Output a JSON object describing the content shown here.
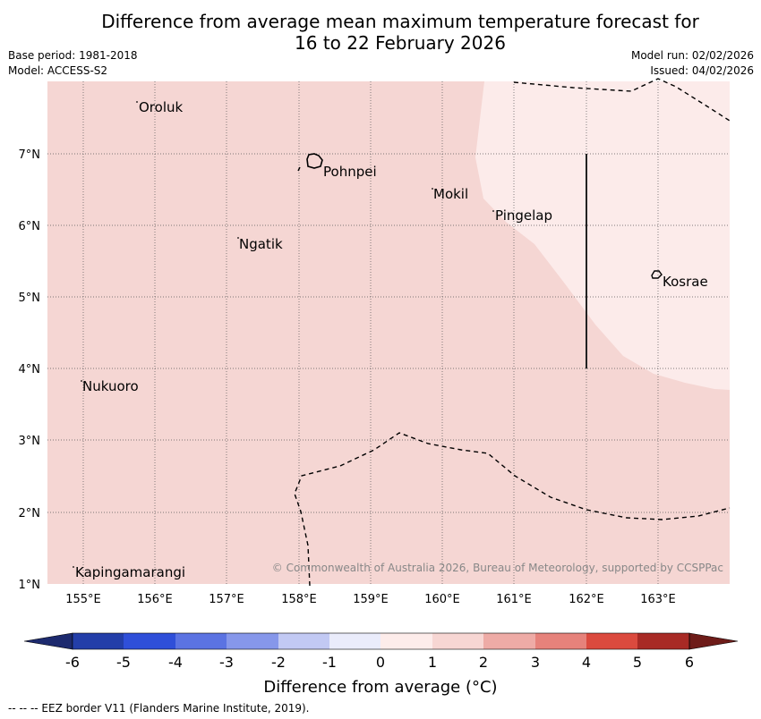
{
  "title": {
    "line1": "Difference from average mean maximum temperature forecast for",
    "line2": "16 to 22 February 2026"
  },
  "meta_left": {
    "base_period": "Base period: 1981-2018",
    "model": "Model: ACCESS-S2"
  },
  "meta_right": {
    "model_run": "Model run: 02/02/2026",
    "issued": "Issued: 04/02/2026"
  },
  "map": {
    "lon_labels": [
      "155°E",
      "156°E",
      "157°E",
      "158°E",
      "159°E",
      "160°E",
      "161°E",
      "162°E",
      "163°E"
    ],
    "lat_labels": [
      "7°N",
      "6°N",
      "5°N",
      "4°N",
      "3°N",
      "2°N",
      "1°N"
    ],
    "places": [
      "Oroluk",
      "Pohnpei",
      "Mokil",
      "Pingelap",
      "Ngatik",
      "Kosrae",
      "Nukuoro",
      "Kapingamarangi"
    ],
    "copyright": "© Commonwealth of Australia 2026, Bureau of Meteorology, supported by CCSPPac",
    "colors": {
      "bin_1_2": "#f5d6d3",
      "bin_0_1": "#fcebea"
    }
  },
  "colorbar": {
    "ticks": [
      "-6",
      "-5",
      "-4",
      "-3",
      "-2",
      "-1",
      "0",
      "1",
      "2",
      "3",
      "4",
      "5",
      "6"
    ],
    "colors": [
      "#233ea9",
      "#2f4fd9",
      "#5b73e2",
      "#8697ea",
      "#c2c9f3",
      "#eaecfb",
      "#fdecea",
      "#f7d6d3",
      "#eeaba6",
      "#e6827b",
      "#db4a3e",
      "#a82a25"
    ],
    "low_extend_color": "#1d2a6e",
    "high_extend_color": "#6e1c19",
    "label": "Difference from average (°C)"
  },
  "footer": "-- -- -- EEZ border V11 (Flanders Marine Institute, 2019)."
}
